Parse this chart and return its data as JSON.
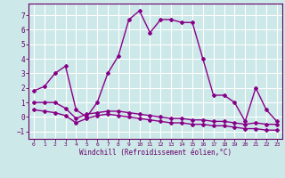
{
  "xlabel": "Windchill (Refroidissement éolien,°C)",
  "background_color": "#cde8e8",
  "grid_color": "#ffffff",
  "line_color": "#880088",
  "xlim": [
    -0.5,
    23.5
  ],
  "ylim": [
    -1.5,
    7.8
  ],
  "yticks": [
    -1,
    0,
    1,
    2,
    3,
    4,
    5,
    6,
    7
  ],
  "xticks": [
    0,
    1,
    2,
    3,
    4,
    5,
    6,
    7,
    8,
    9,
    10,
    11,
    12,
    13,
    14,
    15,
    16,
    17,
    18,
    19,
    20,
    21,
    22,
    23
  ],
  "series1_x": [
    0,
    1,
    2,
    3,
    4,
    5,
    6,
    7,
    8,
    9,
    10,
    11,
    12,
    13,
    14,
    15,
    16,
    17,
    18,
    19,
    20,
    21,
    22,
    23
  ],
  "series1_y": [
    1.8,
    2.1,
    3.0,
    3.5,
    0.5,
    0.0,
    1.0,
    3.0,
    4.2,
    6.7,
    7.3,
    5.8,
    6.7,
    6.7,
    6.5,
    6.5,
    4.0,
    1.5,
    1.5,
    1.0,
    -0.3,
    2.0,
    0.5,
    -0.3
  ],
  "series2_x": [
    0,
    1,
    2,
    3,
    4,
    5,
    6,
    7,
    8,
    9,
    10,
    11,
    12,
    13,
    14,
    15,
    16,
    17,
    18,
    19,
    20,
    21,
    22,
    23
  ],
  "series2_y": [
    1.0,
    1.0,
    1.0,
    0.6,
    -0.1,
    0.2,
    0.3,
    0.4,
    0.4,
    0.3,
    0.2,
    0.1,
    0.0,
    -0.1,
    -0.1,
    -0.2,
    -0.2,
    -0.3,
    -0.3,
    -0.4,
    -0.5,
    -0.4,
    -0.5,
    -0.5
  ],
  "series3_x": [
    0,
    1,
    2,
    3,
    4,
    5,
    6,
    7,
    8,
    9,
    10,
    11,
    12,
    13,
    14,
    15,
    16,
    17,
    18,
    19,
    20,
    21,
    22,
    23
  ],
  "series3_y": [
    0.5,
    0.4,
    0.3,
    0.1,
    -0.4,
    -0.1,
    0.1,
    0.2,
    0.1,
    0.0,
    -0.1,
    -0.2,
    -0.3,
    -0.4,
    -0.4,
    -0.5,
    -0.5,
    -0.6,
    -0.6,
    -0.7,
    -0.8,
    -0.8,
    -0.9,
    -0.9
  ]
}
